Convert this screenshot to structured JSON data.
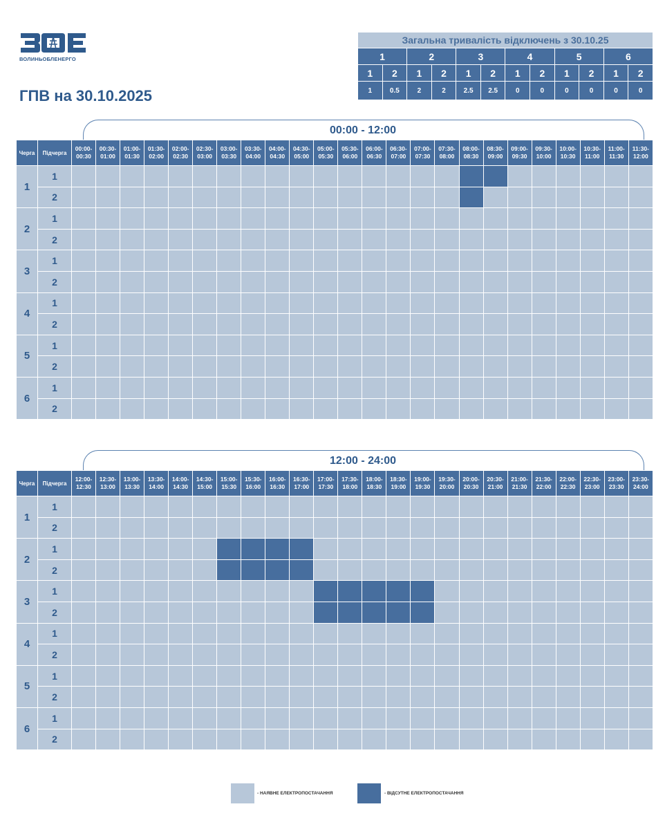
{
  "logo": {
    "name": "ЗОЕ",
    "subtitle": "ВОЛИНЬОБЛЕНЕРГО"
  },
  "title": "ГПВ на 30.10.2025",
  "summary": {
    "caption": "Загальна тривалість відключень з 30.10.25",
    "queues": [
      "1",
      "2",
      "3",
      "4",
      "5",
      "6"
    ],
    "subqueues": [
      "1",
      "2",
      "1",
      "2",
      "1",
      "2",
      "1",
      "2",
      "1",
      "2",
      "1",
      "2"
    ],
    "values": [
      "1",
      "0.5",
      "2",
      "2",
      "2.5",
      "2.5",
      "0",
      "0",
      "0",
      "0",
      "0",
      "0"
    ]
  },
  "headers": {
    "queue": "Черга",
    "subqueue": "Підчерга"
  },
  "periods": [
    {
      "label": "00:00 - 12:00",
      "slots": [
        "00:00-00:30",
        "00:30-01:00",
        "01:00-01:30",
        "01:30-02:00",
        "02:00-02:30",
        "02:30-03:00",
        "03:00-03:30",
        "03:30-04:00",
        "04:00-04:30",
        "04:30-05:00",
        "05:00-05:30",
        "05:30-06:00",
        "06:00-06:30",
        "06:30-07:00",
        "07:00-07:30",
        "07:30-08:00",
        "08:00-08:30",
        "08:30-09:00",
        "09:00-09:30",
        "09:30-10:00",
        "10:00-10:30",
        "10:30-11:00",
        "11:00-11:30",
        "11:30-12:00"
      ],
      "rows": [
        {
          "queue": "1",
          "subqueue": "1",
          "outages": [
            16,
            17
          ]
        },
        {
          "queue": "1",
          "subqueue": "2",
          "outages": [
            16
          ]
        },
        {
          "queue": "2",
          "subqueue": "1",
          "outages": []
        },
        {
          "queue": "2",
          "subqueue": "2",
          "outages": []
        },
        {
          "queue": "3",
          "subqueue": "1",
          "outages": []
        },
        {
          "queue": "3",
          "subqueue": "2",
          "outages": []
        },
        {
          "queue": "4",
          "subqueue": "1",
          "outages": []
        },
        {
          "queue": "4",
          "subqueue": "2",
          "outages": []
        },
        {
          "queue": "5",
          "subqueue": "1",
          "outages": []
        },
        {
          "queue": "5",
          "subqueue": "2",
          "outages": []
        },
        {
          "queue": "6",
          "subqueue": "1",
          "outages": []
        },
        {
          "queue": "6",
          "subqueue": "2",
          "outages": []
        }
      ]
    },
    {
      "label": "12:00 - 24:00",
      "slots": [
        "12:00-12:30",
        "12:30-13:00",
        "13:00-13:30",
        "13:30-14:00",
        "14:00-14:30",
        "14:30-15:00",
        "15:00-15:30",
        "15:30-16:00",
        "16:00-16:30",
        "16:30-17:00",
        "17:00-17:30",
        "17:30-18:00",
        "18:00-18:30",
        "18:30-19:00",
        "19:00-19:30",
        "19:30-20:00",
        "20:00-20:30",
        "20:30-21:00",
        "21:00-21:30",
        "21:30-22:00",
        "22:00-22:30",
        "22:30-23:00",
        "23:00-23:30",
        "23:30-24:00"
      ],
      "rows": [
        {
          "queue": "1",
          "subqueue": "1",
          "outages": []
        },
        {
          "queue": "1",
          "subqueue": "2",
          "outages": []
        },
        {
          "queue": "2",
          "subqueue": "1",
          "outages": [
            6,
            7,
            8,
            9
          ]
        },
        {
          "queue": "2",
          "subqueue": "2",
          "outages": [
            6,
            7,
            8,
            9
          ]
        },
        {
          "queue": "3",
          "subqueue": "1",
          "outages": [
            10,
            11,
            12,
            13,
            14
          ]
        },
        {
          "queue": "3",
          "subqueue": "2",
          "outages": [
            10,
            11,
            12,
            13,
            14
          ]
        },
        {
          "queue": "4",
          "subqueue": "1",
          "outages": []
        },
        {
          "queue": "4",
          "subqueue": "2",
          "outages": []
        },
        {
          "queue": "5",
          "subqueue": "1",
          "outages": []
        },
        {
          "queue": "5",
          "subqueue": "2",
          "outages": []
        },
        {
          "queue": "6",
          "subqueue": "1",
          "outages": []
        },
        {
          "queue": "6",
          "subqueue": "2",
          "outages": []
        }
      ]
    }
  ],
  "legend": {
    "available": "- НАЯВНЕ ЕЛЕКТРОПОСТАЧАННЯ",
    "absent": "- ВІДСУТНЕ ЕЛЕКТРОПОСТАЧАННЯ"
  },
  "colors": {
    "available": "#b7c7d9",
    "absent": "#476e9e",
    "brand": "#2f5a8c"
  }
}
